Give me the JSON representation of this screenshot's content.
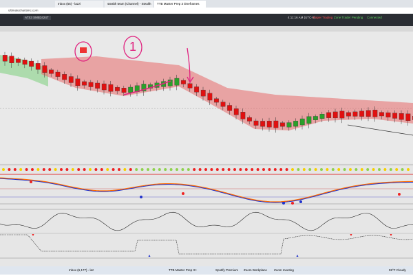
{
  "browser": {
    "tabs": [
      "Inbox (55) - lazzi",
      "stealth team (Channel) - Stealth",
      "TTB Master Prep 3 timeframes"
    ],
    "url": "ultimatechartsinc.com"
  },
  "toolbar": {
    "symbol": "ATS3 SMB3424T",
    "time": "4:11:16 AM (UTC-5)",
    "status": [
      "Paper Trading",
      "Zone Trader Pending",
      "Connected"
    ]
  },
  "chart": {
    "annotation": "1"
  },
  "taskbar": {
    "items": [
      "Inbox (6,177) - laz",
      "TTB Master Prep 3 t",
      "Spotify Premium",
      "Zoom Workplace",
      "Zoom meeting"
    ],
    "weather": "59°F Cloudy"
  }
}
